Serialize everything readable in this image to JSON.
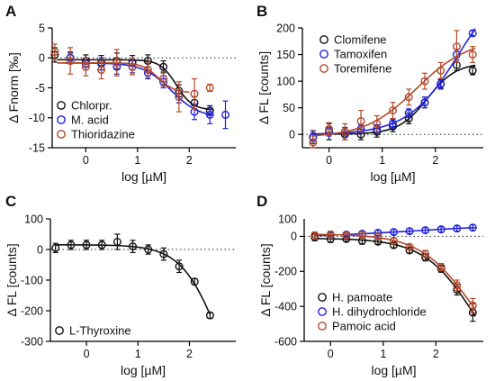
{
  "chart_data": [
    {
      "panel": "A",
      "type": "scatter",
      "xlabel": "log [µM]",
      "ylabel": "Δ Fnorm [‰]",
      "xlim": [
        -0.65,
        2.9
      ],
      "ylim": [
        -15,
        5
      ],
      "xticks": [
        0,
        1,
        2
      ],
      "yticks": [
        5,
        0,
        -5,
        -10,
        -15
      ],
      "tick_labels_x": [
        "0",
        "1",
        "2"
      ],
      "tick_labels_y": [
        "5",
        "0",
        "-5",
        "-10",
        "-15"
      ],
      "zero_line": true,
      "legend_position": "center-left",
      "series": [
        {
          "name": "Chlorpr.",
          "color": "#111111",
          "fit_range": [
            -0.55,
            2.45
          ],
          "x": [
            -0.6,
            -0.3,
            0.0,
            0.3,
            0.6,
            0.9,
            1.2,
            1.5,
            1.8,
            2.1,
            2.4
          ],
          "y": [
            0.5,
            0,
            -0.5,
            -0.8,
            -0.5,
            -0.8,
            -0.5,
            -1.5,
            -5.5,
            -7.5,
            -8.8
          ],
          "err": [
            1.2,
            0.8,
            1.0,
            1.2,
            1.3,
            1.2,
            1.0,
            1.0,
            1.0,
            1.0,
            0.8
          ]
        },
        {
          "name": "M. acid",
          "color": "#2222dd",
          "fit_range": [
            -0.55,
            2.45
          ],
          "x": [
            -0.3,
            0.0,
            0.3,
            0.6,
            0.9,
            1.2,
            1.5,
            1.8,
            2.1,
            2.4,
            2.7
          ],
          "y": [
            0,
            -1,
            -1,
            -1.5,
            -1.5,
            -2.5,
            -4,
            -6.5,
            -9,
            -9.5,
            -9.5
          ],
          "err": [
            1.0,
            1.0,
            1.0,
            1.2,
            1.0,
            1.0,
            1.0,
            1.0,
            1.3,
            1.5,
            2.3
          ]
        },
        {
          "name": "Thioridazine",
          "color": "#b24a2a",
          "fit_range": [
            -0.55,
            2.0
          ],
          "x": [
            -0.6,
            -0.3,
            0.0,
            0.3,
            0.6,
            0.9,
            1.2,
            1.5,
            1.8,
            2.1,
            2.4
          ],
          "y": [
            1.0,
            -0.5,
            -1.5,
            -2.0,
            -0.8,
            -1.5,
            -2.0,
            -3.5,
            -6.5,
            -6.0,
            -5.0
          ],
          "err": [
            1.3,
            2.2,
            1.5,
            1.5,
            2.2,
            1.3,
            1.3,
            1.2,
            2.5,
            2.5,
            0.6
          ]
        }
      ]
    },
    {
      "panel": "B",
      "type": "scatter",
      "xlabel": "log [µM]",
      "ylabel": "Δ FL [counts]",
      "xlim": [
        -0.5,
        2.9
      ],
      "ylim": [
        -25,
        200
      ],
      "xticks": [
        0,
        1,
        2
      ],
      "yticks": [
        200,
        150,
        100,
        50,
        0
      ],
      "tick_labels_x": [
        "0",
        "1",
        "2"
      ],
      "tick_labels_y": [
        "200",
        "150",
        "100",
        "50",
        "0"
      ],
      "zero_line": true,
      "legend_position": "top-left",
      "series": [
        {
          "name": "Clomifene",
          "color": "#111111",
          "fit_range": [
            -0.3,
            2.75
          ],
          "x": [
            -0.3,
            0.0,
            0.3,
            0.6,
            0.9,
            1.2,
            1.5,
            1.8,
            2.1,
            2.4,
            2.7
          ],
          "y": [
            -5,
            5,
            0,
            0,
            5,
            15,
            30,
            60,
            95,
            130,
            120
          ],
          "err": [
            12,
            15,
            10,
            10,
            10,
            10,
            10,
            10,
            8,
            10,
            8
          ]
        },
        {
          "name": "Tamoxifen",
          "color": "#2222dd",
          "fit_range": [
            -0.3,
            2.75
          ],
          "x": [
            -0.3,
            0.0,
            0.3,
            0.6,
            0.9,
            1.2,
            1.5,
            1.8,
            2.1,
            2.4,
            2.7
          ],
          "y": [
            -5,
            5,
            5,
            10,
            10,
            20,
            40,
            60,
            95,
            150,
            190
          ],
          "err": [
            8,
            8,
            8,
            8,
            8,
            8,
            8,
            10,
            10,
            10,
            5
          ]
        },
        {
          "name": "Toremifene",
          "color": "#b24a2a",
          "fit_range": [
            -0.3,
            2.75
          ],
          "x": [
            -0.3,
            0.0,
            0.3,
            0.6,
            0.9,
            1.2,
            1.5,
            1.8,
            2.1,
            2.4,
            2.7
          ],
          "y": [
            -15,
            10,
            5,
            25,
            20,
            45,
            70,
            100,
            120,
            165,
            150
          ],
          "err": [
            12,
            12,
            15,
            20,
            15,
            15,
            15,
            15,
            15,
            30,
            15
          ]
        }
      ]
    },
    {
      "panel": "C",
      "type": "scatter",
      "xlabel": "log [µM]",
      "ylabel": "Δ FL [counts]",
      "xlim": [
        -0.7,
        2.9
      ],
      "ylim": [
        -300,
        100
      ],
      "xticks": [
        0,
        1,
        2
      ],
      "yticks": [
        100,
        0,
        -100,
        -200,
        -300
      ],
      "tick_labels_x": [
        "0",
        "1",
        "2"
      ],
      "tick_labels_y": [
        "100",
        "0",
        "-100",
        "-200",
        "-300"
      ],
      "zero_line": true,
      "legend_position": "bottom-left",
      "series": [
        {
          "name": "L-Thyroxine",
          "color": "#111111",
          "fit_range": [
            -0.6,
            2.4
          ],
          "x": [
            -0.6,
            -0.3,
            0.0,
            0.3,
            0.6,
            0.9,
            1.2,
            1.5,
            1.8,
            2.1,
            2.4
          ],
          "y": [
            5,
            15,
            15,
            15,
            25,
            10,
            0,
            -15,
            -55,
            -105,
            -215
          ],
          "err": [
            15,
            15,
            15,
            15,
            25,
            20,
            15,
            20,
            20,
            10,
            10
          ]
        }
      ]
    },
    {
      "panel": "D",
      "type": "scatter",
      "xlabel": "log [µM]",
      "ylabel": "Δ FL [counts]",
      "xlim": [
        -0.5,
        2.9
      ],
      "ylim": [
        -600,
        100
      ],
      "xticks": [
        0,
        1,
        2
      ],
      "yticks": [
        0,
        -200,
        -400,
        -600
      ],
      "tick_labels_x": [
        "0",
        "1",
        "2"
      ],
      "tick_labels_y": [
        "0",
        "-200",
        "-400",
        "-600"
      ],
      "extra_tick_labels_y": [
        {
          "value": 100,
          "label": "100"
        }
      ],
      "zero_line": true,
      "legend_position": "bottom-left",
      "series": [
        {
          "name": "H. pamoate",
          "color": "#111111",
          "fit_range": [
            -0.3,
            2.75
          ],
          "x": [
            -0.3,
            0.0,
            0.3,
            0.6,
            0.9,
            1.2,
            1.5,
            1.8,
            2.1,
            2.4,
            2.7
          ],
          "y": [
            -5,
            -15,
            -15,
            -25,
            -30,
            -50,
            -80,
            -120,
            -185,
            -305,
            -435
          ],
          "err": [
            20,
            20,
            15,
            20,
            15,
            15,
            15,
            20,
            20,
            30,
            50
          ]
        },
        {
          "name": "H. dihydrochloride",
          "color": "#2222dd",
          "fit_range": [
            -0.3,
            2.75
          ],
          "x": [
            -0.3,
            0.0,
            0.3,
            0.6,
            0.9,
            1.2,
            1.5,
            1.8,
            2.1,
            2.4,
            2.7
          ],
          "y": [
            5,
            5,
            10,
            15,
            20,
            25,
            30,
            35,
            40,
            45,
            50
          ],
          "err": [
            15,
            15,
            15,
            15,
            15,
            15,
            15,
            15,
            15,
            15,
            15
          ]
        },
        {
          "name": "Pamoic acid",
          "color": "#b24a2a",
          "fit_range": [
            -0.3,
            2.75
          ],
          "x": [
            -0.3,
            0.0,
            0.3,
            0.6,
            0.9,
            1.2,
            1.5,
            1.8,
            2.1,
            2.4,
            2.7
          ],
          "y": [
            5,
            10,
            5,
            10,
            0,
            -25,
            -60,
            -100,
            -175,
            -280,
            -395
          ],
          "err": [
            20,
            20,
            15,
            15,
            15,
            15,
            15,
            20,
            20,
            30,
            40
          ]
        }
      ]
    }
  ]
}
